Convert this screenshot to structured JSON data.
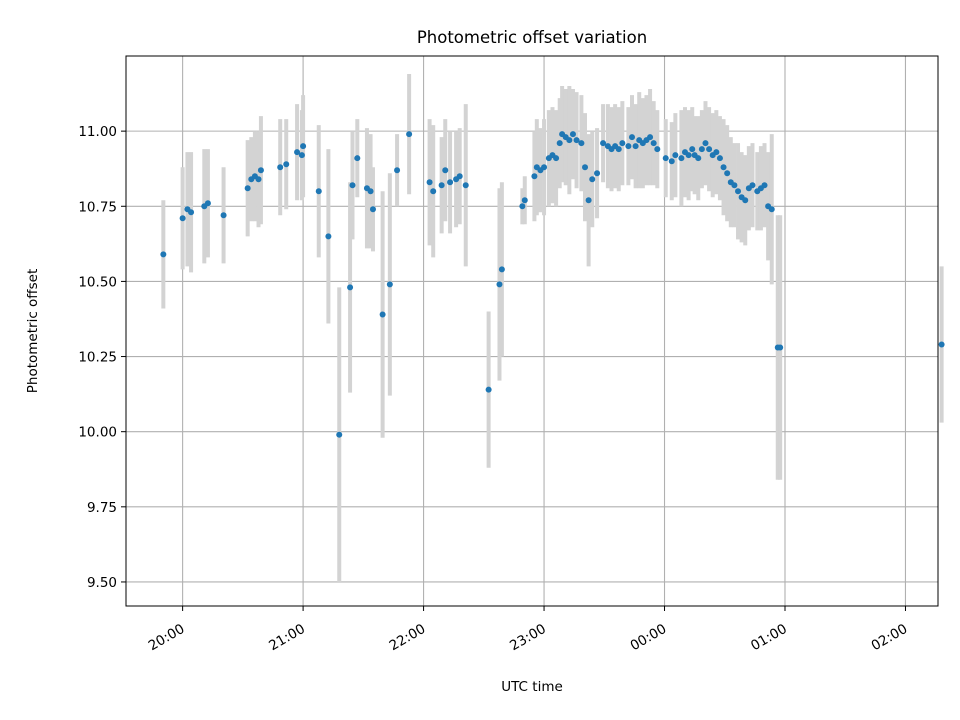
{
  "chart_data": {
    "type": "scatter",
    "title": "Photometric offset variation",
    "xlabel": "UTC time",
    "ylabel": "Photometric offset",
    "x_format": "HH:MM (UTC, hours after 20:00 on observing night; values beyond 24 wrap past midnight)",
    "xlim": [
      -0.47,
      6.27
    ],
    "ylim": [
      9.42,
      11.25
    ],
    "x_ticks": [
      0,
      1,
      2,
      3,
      4,
      5,
      6
    ],
    "x_tick_labels": [
      "20:00",
      "21:00",
      "22:00",
      "23:00",
      "00:00",
      "01:00",
      "02:00"
    ],
    "y_ticks": [
      9.5,
      9.75,
      10.0,
      10.25,
      10.5,
      10.75,
      11.0
    ],
    "y_tick_labels": [
      "9.50",
      "9.75",
      "10.00",
      "10.25",
      "10.50",
      "10.75",
      "11.00"
    ],
    "grid": true,
    "colors": {
      "points": "#1f77b4",
      "errorbars": "#d3d3d3",
      "grid": "#b0b0b0"
    },
    "series": [
      {
        "x": [
          -0.16,
          0.0,
          0.04,
          0.07,
          0.18,
          0.21,
          0.34,
          0.54,
          0.57,
          0.6,
          0.63,
          0.65,
          0.81,
          0.86,
          0.95,
          0.99,
          1.0,
          1.13,
          1.21,
          1.3,
          1.39,
          1.41,
          1.45,
          1.53,
          1.56,
          1.58,
          1.66,
          1.72,
          1.78,
          1.88,
          2.05,
          2.08,
          2.15,
          2.18,
          2.22,
          2.27,
          2.3,
          2.35,
          2.54,
          2.63,
          2.65,
          2.82,
          2.84,
          2.92,
          2.94,
          2.97,
          3.0,
          3.04,
          3.07,
          3.1,
          3.13,
          3.15,
          3.18,
          3.21,
          3.24,
          3.27,
          3.31,
          3.34,
          3.37,
          3.4,
          3.44,
          3.49,
          3.53,
          3.56,
          3.59,
          3.62,
          3.65,
          3.7,
          3.73,
          3.76,
          3.79,
          3.82,
          3.85,
          3.88,
          3.91,
          3.94,
          4.01,
          4.06,
          4.09,
          4.14,
          4.17,
          4.2,
          4.23,
          4.25,
          4.28,
          4.31,
          4.34,
          4.37,
          4.4,
          4.43,
          4.46,
          4.49,
          4.52,
          4.55,
          4.58,
          4.61,
          4.64,
          4.67,
          4.7,
          4.73,
          4.77,
          4.8,
          4.83,
          4.86,
          4.89,
          4.94,
          4.96,
          6.3
        ],
        "y": [
          10.59,
          10.71,
          10.74,
          10.73,
          10.75,
          10.76,
          10.72,
          10.81,
          10.84,
          10.85,
          10.84,
          10.87,
          10.88,
          10.89,
          10.93,
          10.92,
          10.95,
          10.8,
          10.65,
          9.99,
          10.48,
          10.82,
          10.91,
          10.81,
          10.8,
          10.74,
          10.39,
          10.49,
          10.87,
          10.99,
          10.83,
          10.8,
          10.82,
          10.87,
          10.83,
          10.84,
          10.85,
          10.82,
          10.14,
          10.49,
          10.54,
          10.75,
          10.77,
          10.85,
          10.88,
          10.87,
          10.88,
          10.91,
          10.92,
          10.91,
          10.96,
          10.99,
          10.98,
          10.97,
          10.99,
          10.97,
          10.96,
          10.88,
          10.77,
          10.84,
          10.86,
          10.96,
          10.95,
          10.94,
          10.95,
          10.94,
          10.96,
          10.95,
          10.98,
          10.95,
          10.97,
          10.96,
          10.97,
          10.98,
          10.96,
          10.94,
          10.91,
          10.9,
          10.92,
          10.91,
          10.93,
          10.92,
          10.94,
          10.92,
          10.91,
          10.94,
          10.96,
          10.94,
          10.92,
          10.93,
          10.91,
          10.88,
          10.86,
          10.83,
          10.82,
          10.8,
          10.78,
          10.77,
          10.81,
          10.82,
          10.8,
          10.81,
          10.82,
          10.75,
          10.74,
          10.28,
          10.28,
          10.29
        ],
        "err": [
          0.18,
          0.17,
          0.19,
          0.2,
          0.19,
          0.18,
          0.16,
          0.16,
          0.14,
          0.15,
          0.16,
          0.18,
          0.16,
          0.15,
          0.16,
          0.15,
          0.17,
          0.22,
          0.29,
          0.49,
          0.35,
          0.18,
          0.13,
          0.2,
          0.19,
          0.14,
          0.41,
          0.37,
          0.12,
          0.2,
          0.21,
          0.22,
          0.16,
          0.17,
          0.17,
          0.16,
          0.16,
          0.27,
          0.26,
          0.32,
          0.29,
          0.06,
          0.08,
          0.15,
          0.16,
          0.14,
          0.16,
          0.16,
          0.16,
          0.16,
          0.15,
          0.16,
          0.16,
          0.18,
          0.15,
          0.16,
          0.16,
          0.18,
          0.22,
          0.16,
          0.15,
          0.13,
          0.14,
          0.14,
          0.14,
          0.14,
          0.14,
          0.13,
          0.14,
          0.14,
          0.16,
          0.15,
          0.15,
          0.16,
          0.14,
          0.13,
          0.13,
          0.13,
          0.14,
          0.16,
          0.15,
          0.15,
          0.14,
          0.13,
          0.14,
          0.13,
          0.14,
          0.14,
          0.14,
          0.14,
          0.14,
          0.16,
          0.16,
          0.15,
          0.14,
          0.16,
          0.15,
          0.15,
          0.14,
          0.14,
          0.13,
          0.14,
          0.14,
          0.18,
          0.25,
          0.44,
          0.44,
          0.26
        ]
      }
    ]
  }
}
